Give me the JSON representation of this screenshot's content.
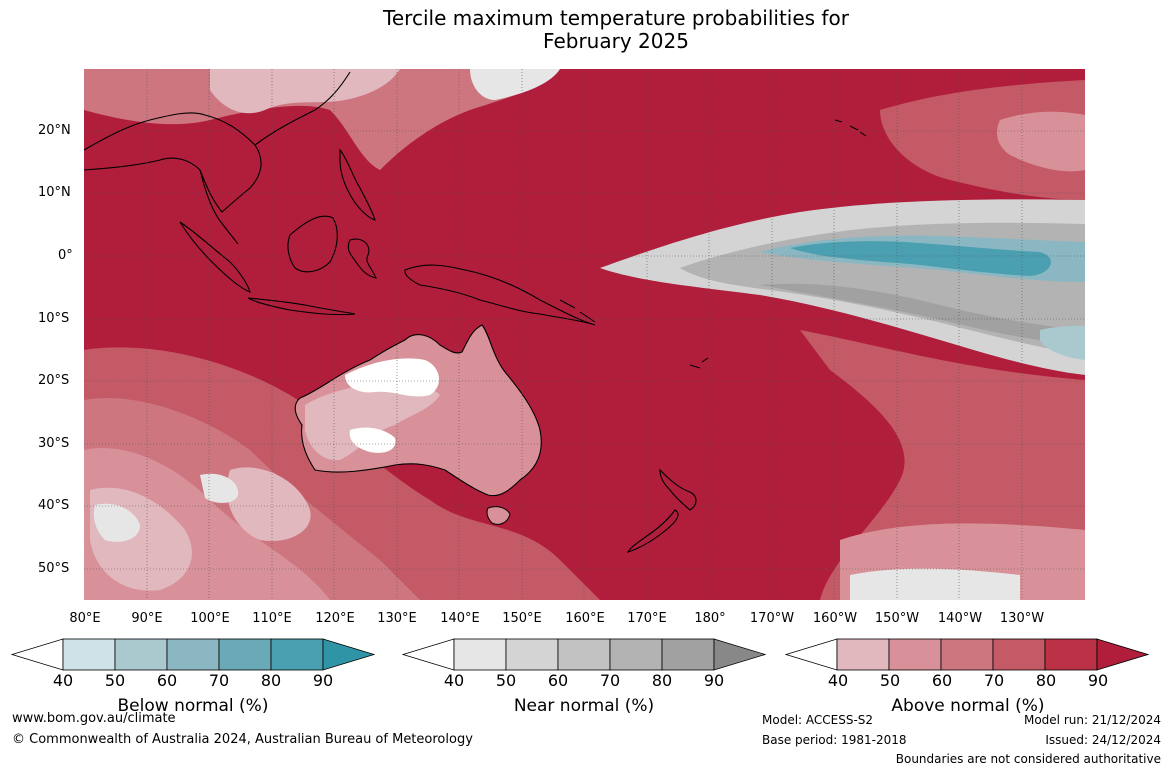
{
  "title_line1": "Tercile maximum temperature probabilities for",
  "title_line2": "February 2025",
  "lat_labels": [
    "20°N",
    "10°N",
    "0°",
    "10°S",
    "20°S",
    "30°S",
    "40°S",
    "50°S"
  ],
  "lon_labels": [
    "80°E",
    "90°E",
    "100°E",
    "110°E",
    "120°E",
    "130°E",
    "140°E",
    "150°E",
    "160°E",
    "170°E",
    "180°",
    "170°W",
    "160°W",
    "150°W",
    "140°W",
    "130°W"
  ],
  "colorbars": [
    {
      "title": "Below normal (%)",
      "ticks": [
        "40",
        "50",
        "60",
        "70",
        "80",
        "90"
      ],
      "colors": [
        "#cfe2e8",
        "#a9c9cf",
        "#8bb7c2",
        "#6aa9b6",
        "#4aa0b0",
        "#2f95a6"
      ]
    },
    {
      "title": "Near normal (%)",
      "ticks": [
        "40",
        "50",
        "60",
        "70",
        "80",
        "90"
      ],
      "colors": [
        "#e6e6e6",
        "#d4d4d4",
        "#c2c2c2",
        "#b3b3b3",
        "#a1a1a1",
        "#888888"
      ]
    },
    {
      "title": "Above normal (%)",
      "ticks": [
        "40",
        "50",
        "60",
        "70",
        "80",
        "90"
      ],
      "colors": [
        "#e2b8bf",
        "#d89199",
        "#cd7680",
        "#c45a66",
        "#bb3247",
        "#b01e3c"
      ]
    }
  ],
  "footer": {
    "website": "www.bom.gov.au/climate",
    "copyright": "© Commonwealth of Australia 2024, Australian Bureau of Meteorology",
    "model": "Model: ACCESS-S2",
    "base_period": "Base period: 1981-2018",
    "model_run": "Model run: 21/12/2024",
    "issued": "Issued: 24/12/2024",
    "disclaimer": "Boundaries are not considered authoritative"
  }
}
